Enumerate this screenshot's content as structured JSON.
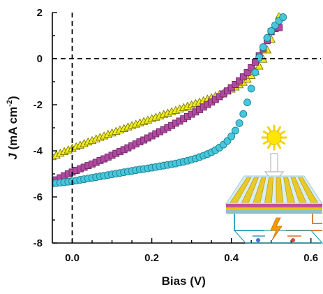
{
  "chart_data": {
    "type": "scatter",
    "title": "",
    "xlabel": "Bias (V)",
    "ylabel": {
      "parts": [
        "J",
        " (mA cm",
        "-2",
        ")"
      ]
    },
    "xlim": [
      -0.05,
      0.625
    ],
    "ylim": [
      -8,
      2
    ],
    "x_ticks": [
      "0.0",
      "0.2",
      "0.4",
      "0.6"
    ],
    "y_ticks": [
      "2",
      "0",
      "-2",
      "-4",
      "-6",
      "-8"
    ],
    "reference_lines": {
      "x": 0,
      "y": 0,
      "style": "dashed"
    },
    "grid": false,
    "legend": "none",
    "series": [
      {
        "marker": "triangle",
        "color": "#f2ec1c",
        "edge_color": "#7a7700",
        "x": [
          -0.05,
          -0.04,
          -0.03,
          -0.02,
          -0.01,
          0.0,
          0.01,
          0.02,
          0.03,
          0.04,
          0.05,
          0.06,
          0.07,
          0.08,
          0.09,
          0.1,
          0.11,
          0.12,
          0.13,
          0.14,
          0.15,
          0.16,
          0.17,
          0.18,
          0.19,
          0.2,
          0.21,
          0.22,
          0.23,
          0.24,
          0.25,
          0.26,
          0.27,
          0.28,
          0.29,
          0.3,
          0.31,
          0.32,
          0.33,
          0.34,
          0.35,
          0.36,
          0.37,
          0.38,
          0.39,
          0.4,
          0.41,
          0.42,
          0.43,
          0.44,
          0.45,
          0.46,
          0.47,
          0.48,
          0.49,
          0.5,
          0.51,
          0.52
        ],
        "y": [
          -4.25,
          -4.18,
          -4.1,
          -4.03,
          -3.96,
          -3.89,
          -3.82,
          -3.75,
          -3.68,
          -3.61,
          -3.55,
          -3.48,
          -3.41,
          -3.35,
          -3.28,
          -3.22,
          -3.15,
          -3.09,
          -3.03,
          -2.96,
          -2.9,
          -2.84,
          -2.78,
          -2.72,
          -2.66,
          -2.6,
          -2.54,
          -2.48,
          -2.42,
          -2.36,
          -2.3,
          -2.24,
          -2.18,
          -2.12,
          -2.06,
          -2.0,
          -1.94,
          -1.88,
          -1.82,
          -1.75,
          -1.69,
          -1.62,
          -1.55,
          -1.48,
          -1.4,
          -1.32,
          -1.23,
          -1.13,
          -1.02,
          -0.89,
          -0.73,
          -0.55,
          -0.32,
          -0.02,
          0.38,
          0.85,
          1.35,
          1.85
        ]
      },
      {
        "marker": "square",
        "color": "#b14aa0",
        "edge_color": "#6d2563",
        "x": [
          -0.05,
          -0.04,
          -0.03,
          -0.02,
          -0.01,
          0.0,
          0.01,
          0.02,
          0.03,
          0.04,
          0.05,
          0.06,
          0.07,
          0.08,
          0.09,
          0.1,
          0.11,
          0.12,
          0.13,
          0.14,
          0.15,
          0.16,
          0.17,
          0.18,
          0.19,
          0.2,
          0.21,
          0.22,
          0.23,
          0.24,
          0.25,
          0.26,
          0.27,
          0.28,
          0.29,
          0.3,
          0.31,
          0.32,
          0.33,
          0.34,
          0.35,
          0.36,
          0.37,
          0.38,
          0.39,
          0.4,
          0.41,
          0.42,
          0.43,
          0.44,
          0.45,
          0.46,
          0.47,
          0.48,
          0.49,
          0.5,
          0.51,
          0.52
        ],
        "y": [
          -5.35,
          -5.26,
          -5.17,
          -5.08,
          -5.0,
          -4.92,
          -4.85,
          -4.78,
          -4.71,
          -4.64,
          -4.57,
          -4.5,
          -4.42,
          -4.35,
          -4.27,
          -4.19,
          -4.11,
          -4.03,
          -3.95,
          -3.87,
          -3.78,
          -3.7,
          -3.61,
          -3.53,
          -3.44,
          -3.35,
          -3.26,
          -3.17,
          -3.08,
          -2.99,
          -2.9,
          -2.8,
          -2.71,
          -2.61,
          -2.51,
          -2.41,
          -2.31,
          -2.21,
          -2.1,
          -1.99,
          -1.88,
          -1.77,
          -1.65,
          -1.53,
          -1.4,
          -1.26,
          -1.12,
          -0.96,
          -0.79,
          -0.6,
          -0.39,
          -0.15,
          0.12,
          0.43,
          0.78,
          1.17,
          1.3,
          1.35
        ]
      },
      {
        "marker": "circle",
        "color": "#46c8dc",
        "edge_color": "#1f7f90",
        "x": [
          -0.05,
          -0.04,
          -0.03,
          -0.02,
          -0.01,
          0.0,
          0.01,
          0.02,
          0.03,
          0.04,
          0.05,
          0.06,
          0.07,
          0.08,
          0.09,
          0.1,
          0.11,
          0.12,
          0.13,
          0.14,
          0.15,
          0.16,
          0.17,
          0.18,
          0.19,
          0.2,
          0.21,
          0.22,
          0.23,
          0.24,
          0.25,
          0.26,
          0.27,
          0.28,
          0.29,
          0.3,
          0.31,
          0.32,
          0.33,
          0.34,
          0.35,
          0.36,
          0.37,
          0.38,
          0.39,
          0.4,
          0.41,
          0.42,
          0.43,
          0.44,
          0.45,
          0.46,
          0.47,
          0.48,
          0.49,
          0.5,
          0.51,
          0.52,
          0.53
        ],
        "y": [
          -5.42,
          -5.4,
          -5.38,
          -5.36,
          -5.34,
          -5.32,
          -5.29,
          -5.26,
          -5.23,
          -5.2,
          -5.17,
          -5.14,
          -5.11,
          -5.08,
          -5.05,
          -5.02,
          -4.99,
          -4.96,
          -4.93,
          -4.9,
          -4.87,
          -4.84,
          -4.81,
          -4.79,
          -4.76,
          -4.73,
          -4.7,
          -4.67,
          -4.64,
          -4.61,
          -4.58,
          -4.55,
          -4.51,
          -4.47,
          -4.43,
          -4.38,
          -4.33,
          -4.27,
          -4.21,
          -4.14,
          -4.06,
          -3.97,
          -3.86,
          -3.73,
          -3.57,
          -3.37,
          -3.12,
          -2.8,
          -2.4,
          -1.9,
          -1.3,
          -0.6,
          0.05,
          0.5,
          0.9,
          1.2,
          1.45,
          1.65,
          1.8
        ]
      }
    ]
  }
}
